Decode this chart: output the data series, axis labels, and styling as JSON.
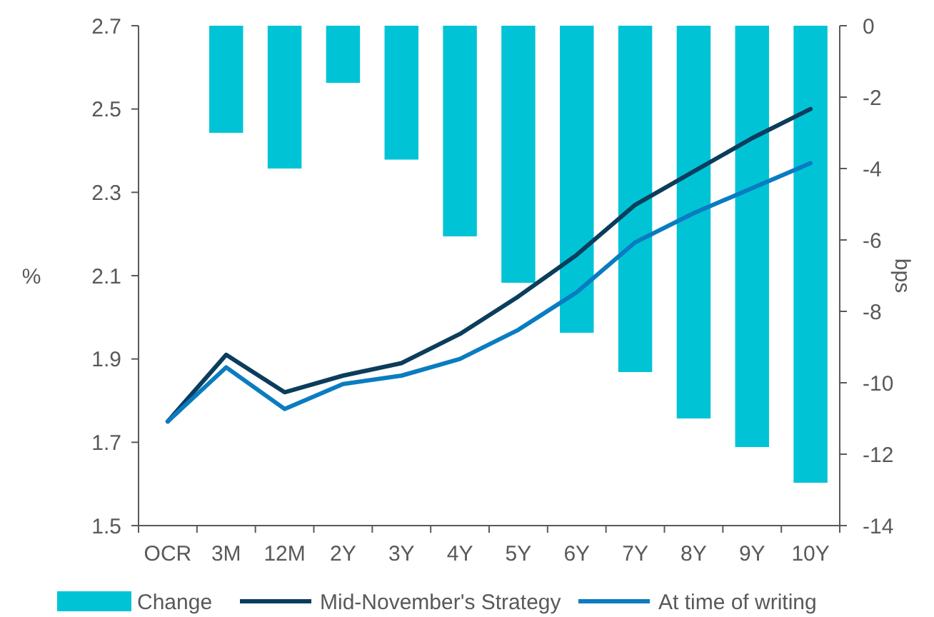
{
  "chart_data": {
    "type": "bar",
    "categories": [
      "OCR",
      "3M",
      "12M",
      "2Y",
      "3Y",
      "4Y",
      "5Y",
      "6Y",
      "7Y",
      "8Y",
      "9Y",
      "10Y"
    ],
    "ylabel": "%",
    "y2label": "bps",
    "ylim": [
      1.5,
      2.7
    ],
    "yticks": [
      1.5,
      1.7,
      1.9,
      2.1,
      2.3,
      2.5,
      2.7
    ],
    "y2lim": [
      -14,
      0
    ],
    "y2ticks": [
      -14,
      -12,
      -10,
      -8,
      -6,
      -4,
      -2,
      0
    ],
    "series": [
      {
        "name": "Change",
        "axis": "y2",
        "color": "#00c4d6",
        "values": [
          0,
          -3.0,
          -4.0,
          -1.6,
          -3.75,
          -5.9,
          -7.2,
          -8.6,
          -9.7,
          -11.0,
          -11.8,
          -12.8
        ]
      },
      {
        "name": "Mid-November's Strategy",
        "type": "line",
        "color": "#0b3d5c",
        "values": [
          1.75,
          1.91,
          1.82,
          1.86,
          1.89,
          1.96,
          2.05,
          2.15,
          2.27,
          2.35,
          2.43,
          2.5
        ]
      },
      {
        "name": "At time of writing",
        "type": "line",
        "color": "#0a7cc1",
        "values": [
          1.75,
          1.88,
          1.78,
          1.84,
          1.86,
          1.9,
          1.97,
          2.06,
          2.18,
          2.25,
          2.31,
          2.37
        ]
      }
    ],
    "grid": false,
    "legend": "bottom",
    "marker": "none",
    "line_style": "solid"
  }
}
